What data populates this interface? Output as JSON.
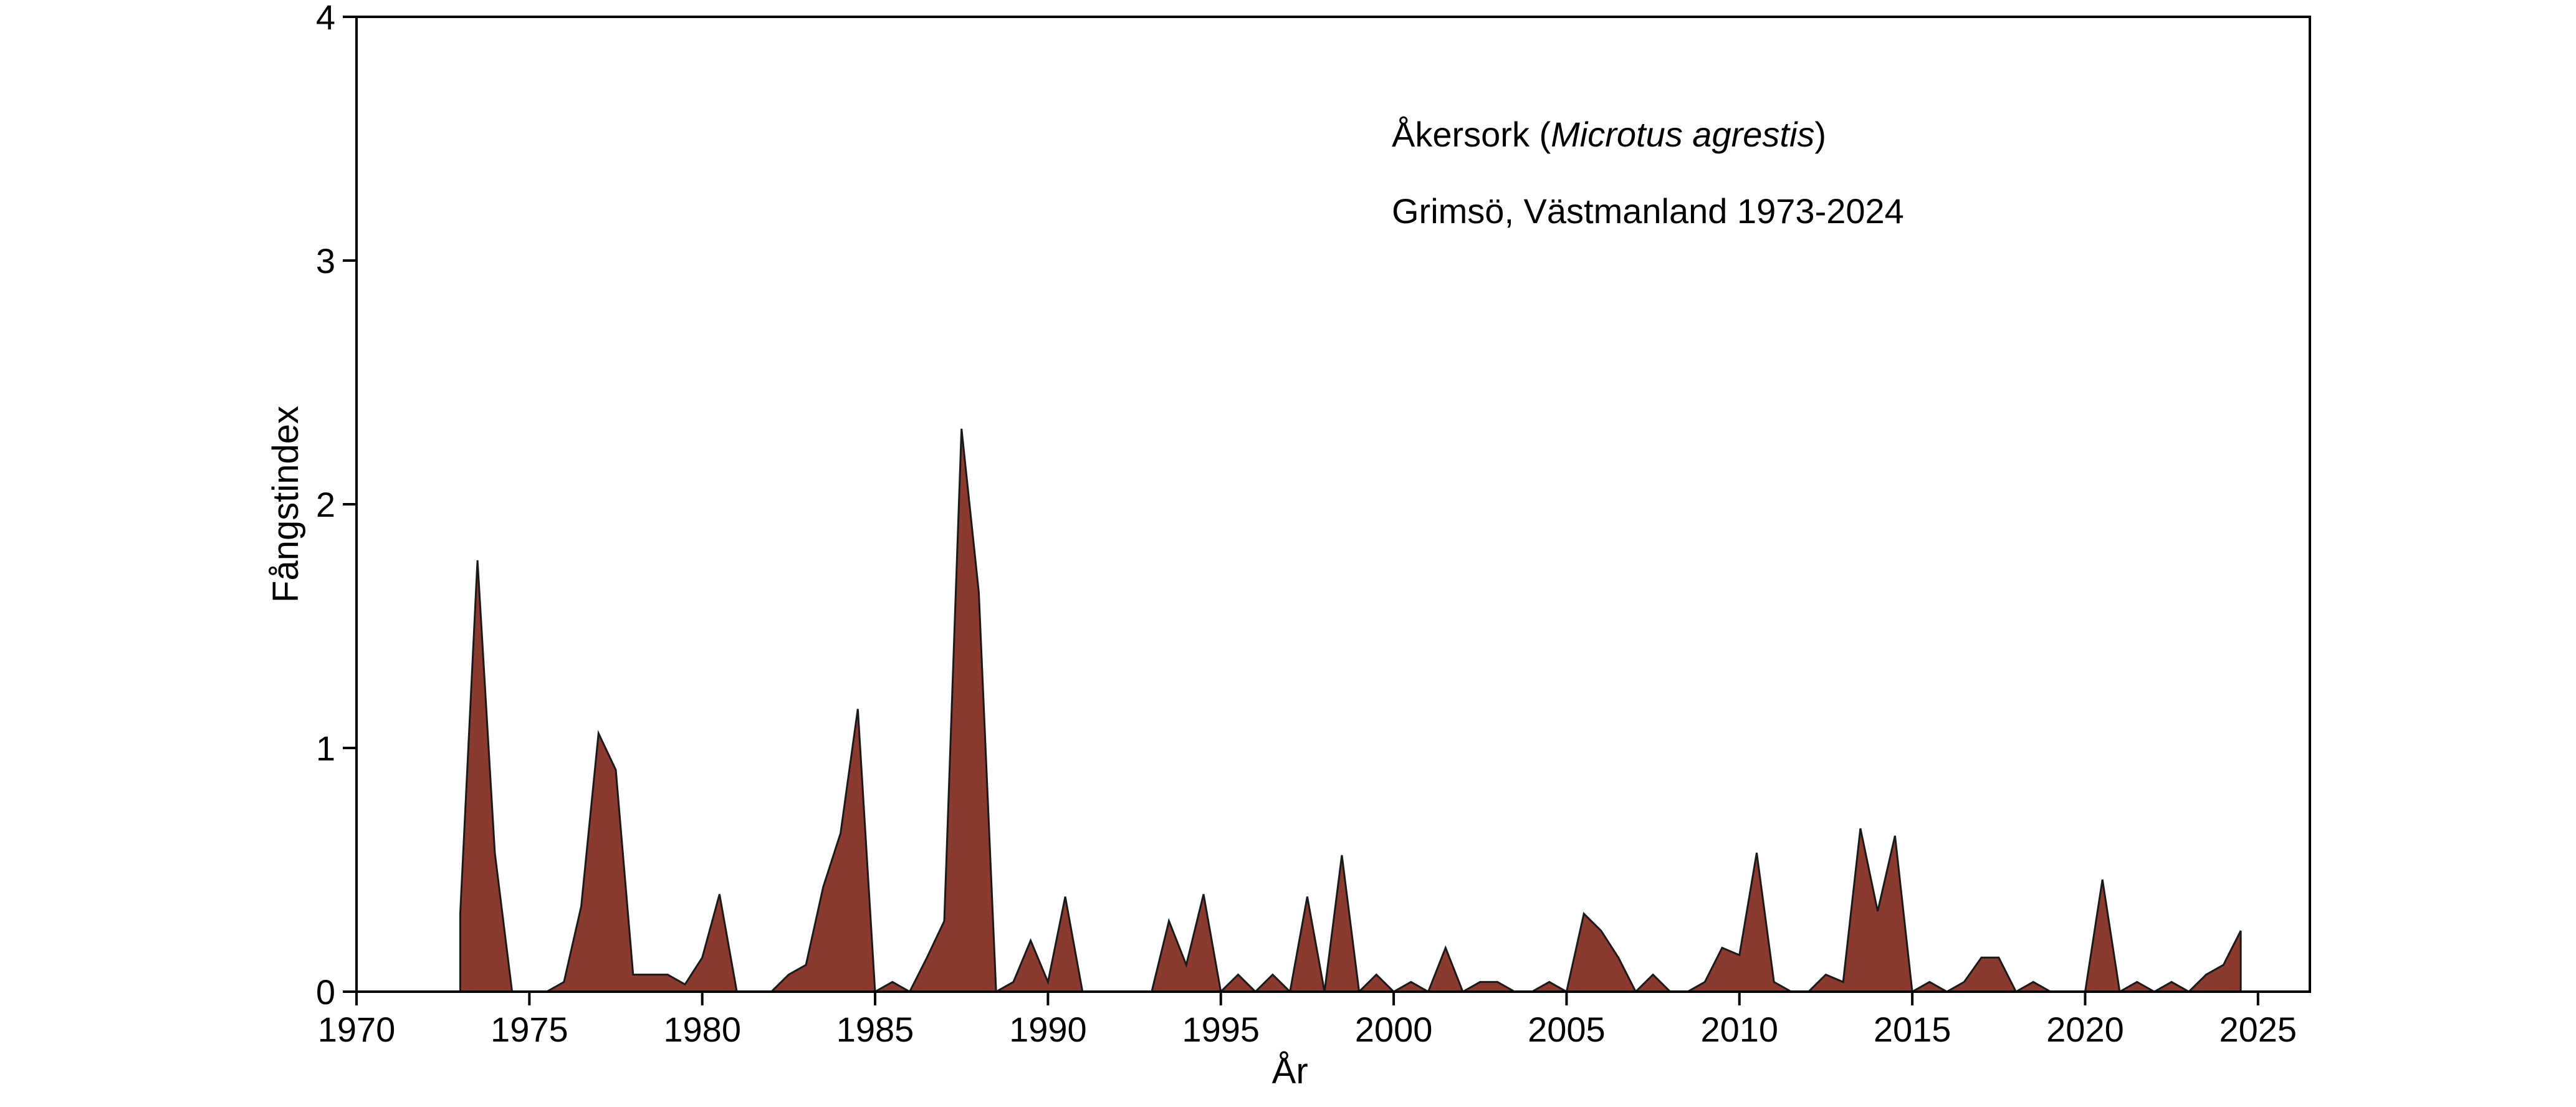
{
  "chart_data": {
    "type": "area",
    "title": "",
    "xlabel": "År",
    "ylabel": "Fångstindex",
    "xlim": [
      1970,
      2026.5
    ],
    "ylim": [
      0,
      4
    ],
    "xticks": [
      1970,
      1975,
      1980,
      1985,
      1990,
      1995,
      2000,
      2005,
      2010,
      2015,
      2020,
      2025
    ],
    "yticks": [
      0,
      1,
      2,
      3,
      4
    ],
    "grid": false,
    "fill_color": "#8b3a2f",
    "line_color": "#1a1a1a",
    "annotations": [
      {
        "parts": [
          {
            "text": "Åkersork (",
            "italic": false
          },
          {
            "text": "Microtus agrestis",
            "italic": true
          },
          {
            "text": ")",
            "italic": false
          }
        ]
      },
      {
        "parts": [
          {
            "text": "Grimsö, Västmanland 1973-2024",
            "italic": false
          }
        ]
      }
    ],
    "series": [
      {
        "x": [
          1973.0,
          1973.5,
          1974.0,
          1974.5,
          1975.0,
          1975.5,
          1976.0,
          1976.5,
          1977.0,
          1977.5,
          1978.0,
          1978.5,
          1979.0,
          1979.5,
          1980.0,
          1980.5,
          1981.0,
          1981.5,
          1982.0,
          1982.5,
          1983.0,
          1983.5,
          1984.0,
          1984.5,
          1985.0,
          1985.5,
          1986.0,
          1986.5,
          1987.0,
          1987.5,
          1988.0,
          1988.5,
          1989.0,
          1989.5,
          1990.0,
          1990.5,
          1991.0,
          1991.5,
          1992.0,
          1992.5,
          1993.0,
          1993.5,
          1994.0,
          1994.5,
          1995.0,
          1995.5,
          1996.0,
          1996.5,
          1997.0,
          1997.5,
          1998.0,
          1998.5,
          1999.0,
          1999.5,
          2000.0,
          2000.5,
          2001.0,
          2001.5,
          2002.0,
          2002.5,
          2003.0,
          2003.5,
          2004.0,
          2004.5,
          2005.0,
          2005.5,
          2006.0,
          2006.5,
          2007.0,
          2007.5,
          2008.0,
          2008.5,
          2009.0,
          2009.5,
          2010.0,
          2010.5,
          2011.0,
          2011.5,
          2012.0,
          2012.5,
          2013.0,
          2013.5,
          2014.0,
          2014.5,
          2015.0,
          2015.5,
          2016.0,
          2016.5,
          2017.0,
          2017.5,
          2018.0,
          2018.5,
          2019.0,
          2019.5,
          2020.0,
          2020.5,
          2021.0,
          2021.5,
          2022.0,
          2022.5,
          2023.0,
          2023.5,
          2024.0,
          2024.5
        ],
        "y": [
          0.32,
          1.77,
          0.57,
          0.0,
          0.0,
          0.0,
          0.04,
          0.35,
          1.06,
          0.91,
          0.07,
          0.07,
          0.07,
          0.03,
          0.14,
          0.4,
          0.0,
          0.0,
          0.0,
          0.07,
          0.11,
          0.43,
          0.65,
          1.16,
          0.0,
          0.04,
          0.0,
          0.14,
          0.29,
          2.31,
          1.64,
          0.0,
          0.04,
          0.21,
          0.04,
          0.39,
          0.0,
          0.0,
          0.0,
          0.0,
          0.0,
          0.29,
          0.11,
          0.4,
          0.0,
          0.07,
          0.0,
          0.07,
          0.0,
          0.39,
          0.0,
          0.56,
          0.0,
          0.07,
          0.0,
          0.04,
          0.0,
          0.18,
          0.0,
          0.04,
          0.04,
          0.0,
          0.0,
          0.04,
          0.0,
          0.32,
          0.25,
          0.14,
          0.0,
          0.07,
          0.0,
          0.0,
          0.04,
          0.18,
          0.15,
          0.57,
          0.04,
          0.0,
          0.0,
          0.07,
          0.04,
          0.67,
          0.33,
          0.64,
          0.0,
          0.04,
          0.0,
          0.04,
          0.14,
          0.14,
          0.0,
          0.04,
          0.0,
          0.0,
          0.0,
          0.46,
          0.0,
          0.04,
          0.0,
          0.04,
          0.0,
          0.07,
          0.11,
          0.25
        ]
      }
    ]
  }
}
